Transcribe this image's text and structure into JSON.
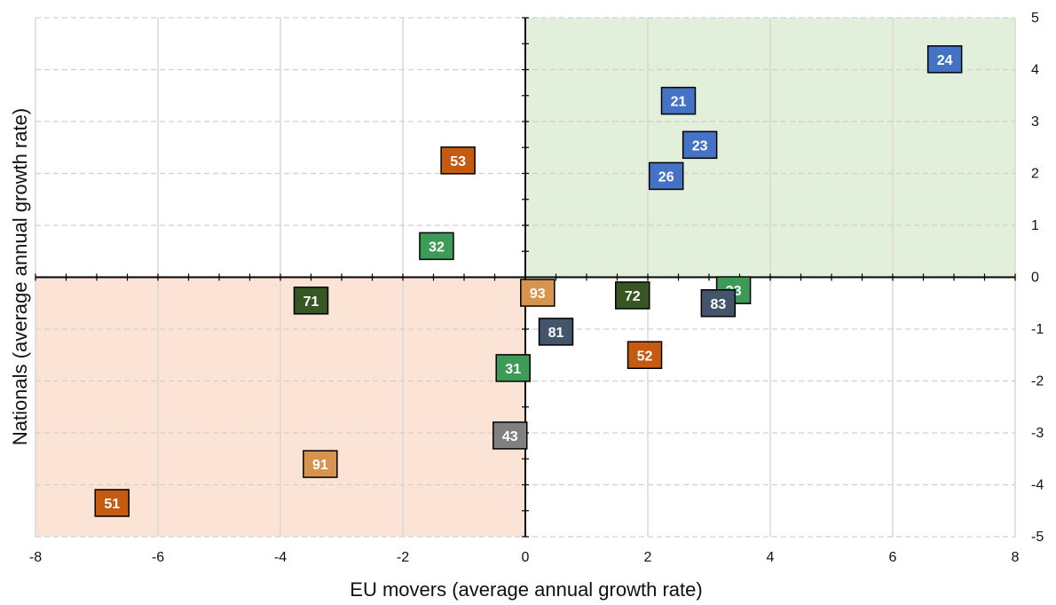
{
  "chart_data": {
    "type": "scatter",
    "title": "",
    "xlabel": "EU movers (average annual growth rate)",
    "ylabel": "Nationals (average annual growth rate)",
    "xlim": [
      -8,
      8
    ],
    "ylim": [
      -5,
      5
    ],
    "x_ticks": [
      -8,
      -6,
      -4,
      -2,
      0,
      2,
      4,
      6,
      8
    ],
    "y_ticks": [
      5,
      4,
      3,
      2,
      1,
      0,
      -1,
      -2,
      -3,
      -4,
      -5
    ],
    "grid": true,
    "quadrant_shading": {
      "top_right": "#e2efda",
      "bottom_left": "#fbe4d5"
    },
    "colors": {
      "blue": "#4472c4",
      "green": "#3e9a57",
      "dark_green": "#375623",
      "orange": "#c55a11",
      "light_orange": "#d6944f",
      "slate": "#44546a",
      "gray": "#808080"
    },
    "points": [
      {
        "label": "24",
        "x": 6.85,
        "y": 4.2,
        "color": "#4472c4"
      },
      {
        "label": "21",
        "x": 2.5,
        "y": 3.4,
        "color": "#4472c4"
      },
      {
        "label": "23",
        "x": 2.85,
        "y": 2.55,
        "color": "#4472c4"
      },
      {
        "label": "26",
        "x": 2.3,
        "y": 1.95,
        "color": "#4472c4"
      },
      {
        "label": "53",
        "x": -1.1,
        "y": 2.25,
        "color": "#c55a11"
      },
      {
        "label": "32",
        "x": -1.45,
        "y": 0.6,
        "color": "#3e9a57"
      },
      {
        "label": "71",
        "x": -3.5,
        "y": -0.45,
        "color": "#375623"
      },
      {
        "label": "93",
        "x": 0.2,
        "y": -0.3,
        "color": "#d6944f"
      },
      {
        "label": "72",
        "x": 1.75,
        "y": -0.35,
        "color": "#375623"
      },
      {
        "label": "33",
        "x": 3.4,
        "y": -0.25,
        "color": "#3e9a57"
      },
      {
        "label": "83",
        "x": 3.15,
        "y": -0.5,
        "color": "#44546a"
      },
      {
        "label": "81",
        "x": 0.5,
        "y": -1.05,
        "color": "#44546a"
      },
      {
        "label": "52",
        "x": 1.95,
        "y": -1.5,
        "color": "#c55a11"
      },
      {
        "label": "31",
        "x": -0.2,
        "y": -1.75,
        "color": "#3e9a57"
      },
      {
        "label": "43",
        "x": -0.25,
        "y": -3.05,
        "color": "#808080"
      },
      {
        "label": "91",
        "x": -3.35,
        "y": -3.6,
        "color": "#d6944f"
      },
      {
        "label": "51",
        "x": -6.75,
        "y": -4.35,
        "color": "#c55a11"
      }
    ]
  }
}
